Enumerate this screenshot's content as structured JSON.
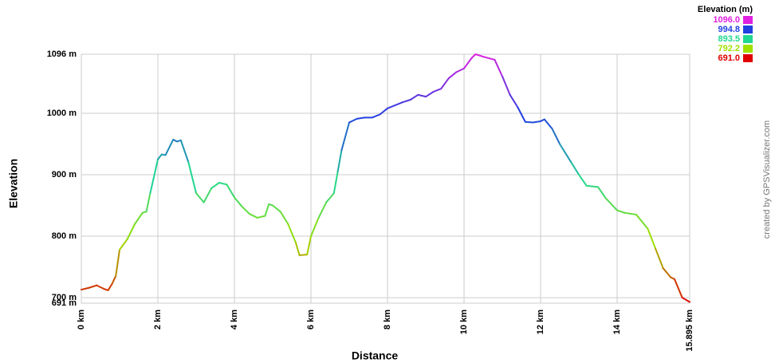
{
  "chart_data": {
    "type": "line",
    "x_label": "Distance",
    "y_label": "Elevation",
    "watermark": "created by GPSVisualizer.com",
    "grid": true,
    "xlim": [
      0,
      15.895
    ],
    "ylim": [
      691,
      1096
    ],
    "xticks": [
      {
        "value": 0,
        "label": "0 km"
      },
      {
        "value": 2,
        "label": "2 km"
      },
      {
        "value": 4,
        "label": "4 km"
      },
      {
        "value": 6,
        "label": "6 km"
      },
      {
        "value": 8,
        "label": "8 km"
      },
      {
        "value": 10,
        "label": "10 km"
      },
      {
        "value": 12,
        "label": "12 km"
      },
      {
        "value": 14,
        "label": "14 km"
      },
      {
        "value": 15.895,
        "label": "15.895 km"
      }
    ],
    "yticks": [
      {
        "value": 691,
        "label": "691 m"
      },
      {
        "value": 700,
        "label": "700 m"
      },
      {
        "value": 800,
        "label": "800 m"
      },
      {
        "value": 900,
        "label": "900 m"
      },
      {
        "value": 1000,
        "label": "1000 m"
      },
      {
        "value": 1096,
        "label": "1096 m"
      }
    ],
    "legend": {
      "title": "Elevation (m)",
      "position": "top-right",
      "entries": [
        {
          "value": 1096,
          "label": "1096.0",
          "color": "#e020e0"
        },
        {
          "value": 994.8,
          "label": "994.8",
          "color": "#2040e0"
        },
        {
          "value": 893.5,
          "label": "893.5",
          "color": "#20d890"
        },
        {
          "value": 792.2,
          "label": "792.2",
          "color": "#a0e000"
        },
        {
          "value": 691,
          "label": "691.0",
          "color": "#e00000"
        }
      ]
    },
    "x": [
      0,
      0.2,
      0.4,
      0.6,
      0.7,
      0.8,
      0.9,
      1.0,
      1.2,
      1.4,
      1.6,
      1.7,
      1.8,
      2.0,
      2.1,
      2.2,
      2.4,
      2.5,
      2.6,
      2.8,
      3.0,
      3.2,
      3.4,
      3.6,
      3.8,
      4.0,
      4.2,
      4.4,
      4.6,
      4.8,
      4.9,
      5.0,
      5.2,
      5.4,
      5.6,
      5.7,
      5.9,
      6.0,
      6.2,
      6.4,
      6.6,
      6.7,
      6.8,
      7.0,
      7.2,
      7.4,
      7.6,
      7.8,
      8.0,
      8.2,
      8.4,
      8.6,
      8.8,
      9.0,
      9.2,
      9.4,
      9.6,
      9.8,
      10.0,
      10.2,
      10.3,
      10.5,
      10.8,
      11.0,
      11.2,
      11.4,
      11.6,
      11.8,
      12.0,
      12.1,
      12.3,
      12.5,
      12.8,
      13.0,
      13.2,
      13.5,
      13.7,
      14.0,
      14.2,
      14.5,
      14.8,
      15.0,
      15.2,
      15.4,
      15.5,
      15.7,
      15.895
    ],
    "values": [
      713,
      716,
      720,
      714,
      712,
      722,
      735,
      778,
      795,
      820,
      838,
      840,
      870,
      925,
      933,
      932,
      957,
      954,
      956,
      920,
      870,
      855,
      878,
      887,
      884,
      863,
      848,
      836,
      830,
      833,
      852,
      850,
      840,
      820,
      790,
      769,
      770,
      800,
      830,
      855,
      870,
      905,
      940,
      985,
      991,
      993,
      993,
      998,
      1008,
      1013,
      1018,
      1022,
      1030,
      1027,
      1035,
      1040,
      1057,
      1067,
      1073,
      1090,
      1096,
      1092,
      1087,
      1060,
      1030,
      1010,
      986,
      985,
      987,
      990,
      975,
      950,
      920,
      900,
      882,
      880,
      862,
      842,
      838,
      835,
      812,
      780,
      748,
      733,
      730,
      700,
      693
    ]
  }
}
